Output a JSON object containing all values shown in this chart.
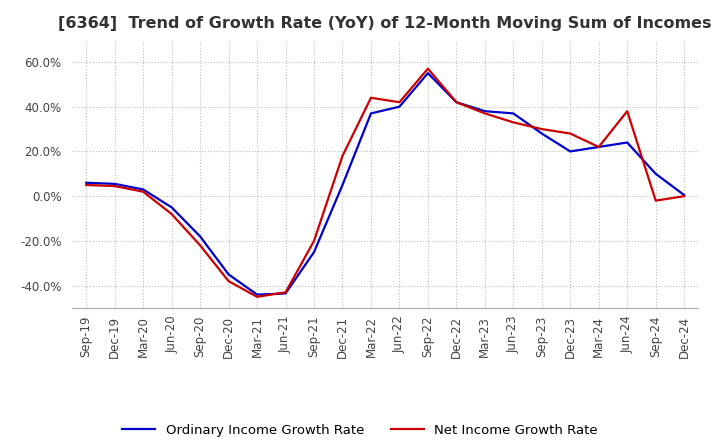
{
  "title": "[6364]  Trend of Growth Rate (YoY) of 12-Month Moving Sum of Incomes",
  "title_fontsize": 11.5,
  "x_labels": [
    "Sep-19",
    "Dec-19",
    "Mar-20",
    "Jun-20",
    "Sep-20",
    "Dec-20",
    "Mar-21",
    "Jun-21",
    "Sep-21",
    "Dec-21",
    "Mar-22",
    "Jun-22",
    "Sep-22",
    "Dec-22",
    "Mar-23",
    "Jun-23",
    "Sep-23",
    "Dec-23",
    "Mar-24",
    "Jun-24",
    "Sep-24",
    "Dec-24"
  ],
  "ordinary_income": [
    6.0,
    5.5,
    3.0,
    -5.0,
    -18.0,
    -35.0,
    -44.0,
    -43.5,
    -25.0,
    5.0,
    37.0,
    40.0,
    55.0,
    42.0,
    38.0,
    37.0,
    28.0,
    20.0,
    22.0,
    24.0,
    10.0,
    0.5
  ],
  "net_income": [
    5.0,
    4.5,
    2.0,
    -8.0,
    -22.0,
    -38.0,
    -45.0,
    -43.0,
    -20.0,
    18.0,
    44.0,
    42.0,
    57.0,
    42.0,
    37.0,
    33.0,
    30.0,
    28.0,
    22.0,
    38.0,
    -2.0,
    0.0
  ],
  "ordinary_color": "#0000cc",
  "net_color": "#cc0000",
  "line_width": 1.6,
  "ylim": [
    -50,
    70
  ],
  "yticks": [
    -40,
    -20,
    0,
    20,
    40,
    60
  ],
  "ytick_labels": [
    "-40.0%",
    "-20.0%",
    "0.0%",
    "20.0%",
    "40.0%",
    "60.0%"
  ],
  "background_color": "#ffffff",
  "plot_bg_color": "#ffffff",
  "grid_color": "#bbbbbb",
  "legend_ordinary": "Ordinary Income Growth Rate",
  "legend_net": "Net Income Growth Rate",
  "legend_fontsize": 9.5,
  "tick_fontsize": 8.5,
  "title_color": "#333333"
}
